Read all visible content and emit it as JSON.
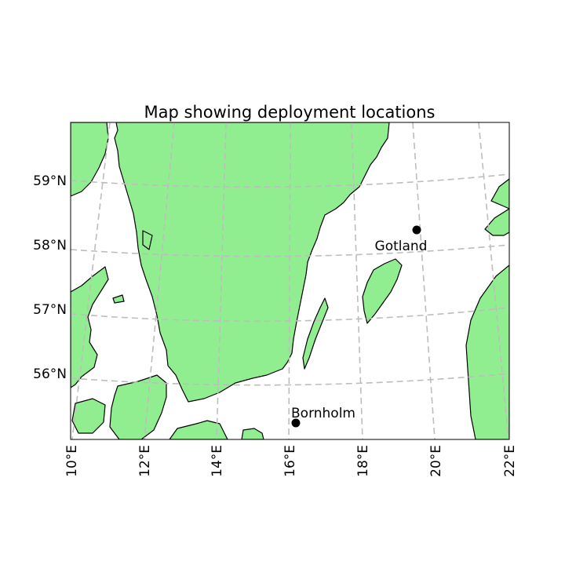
{
  "title": "Map showing deployment locations",
  "colors": {
    "land": "#90EE90",
    "coast": "#000000",
    "grid": "#bdbdbd",
    "marker": "#000000"
  },
  "lat_labels": [
    "59°N",
    "58°N",
    "57°N",
    "56°N"
  ],
  "lon_labels": [
    "10°E",
    "12°E",
    "14°E",
    "16°E",
    "18°E",
    "20°E",
    "22°E"
  ],
  "locations": [
    {
      "name": "Gotland",
      "lat": 58.25,
      "lon": 19.5
    },
    {
      "name": "Bornholm",
      "lat": 55.2,
      "lon": 16.2
    }
  ],
  "extent": {
    "lon": [
      10,
      22
    ],
    "lat": [
      55,
      60
    ]
  }
}
